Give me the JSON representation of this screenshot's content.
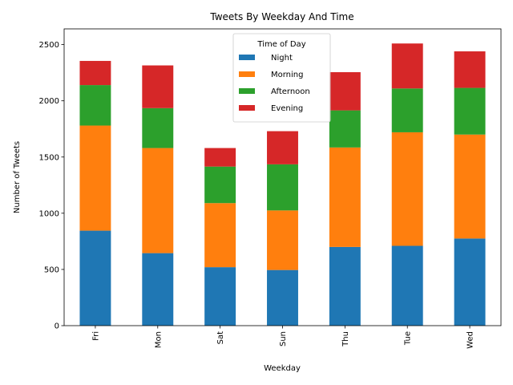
{
  "chart_data": {
    "type": "bar",
    "stacked": true,
    "title": "Tweets By Weekday And Time",
    "xlabel": "Weekday",
    "ylabel": "Number of Tweets",
    "categories": [
      "Fri",
      "Mon",
      "Sat",
      "Sun",
      "Thu",
      "Tue",
      "Wed"
    ],
    "yticks": [
      0,
      500,
      1000,
      1500,
      2000,
      2500
    ],
    "ylim": [
      0,
      2640
    ],
    "grid": false,
    "legend": {
      "title": "Time of Day",
      "position": "top-center"
    },
    "series": [
      {
        "name": "Night",
        "color": "#1f77b4",
        "values": [
          845,
          645,
          520,
          495,
          700,
          710,
          775
        ]
      },
      {
        "name": "Morning",
        "color": "#ff7f0e",
        "values": [
          935,
          935,
          570,
          530,
          885,
          1010,
          925
        ]
      },
      {
        "name": "Afternoon",
        "color": "#2ca02c",
        "values": [
          360,
          355,
          325,
          410,
          330,
          390,
          415
        ]
      },
      {
        "name": "Evening",
        "color": "#d62728",
        "values": [
          215,
          380,
          165,
          295,
          340,
          400,
          325
        ]
      }
    ]
  }
}
